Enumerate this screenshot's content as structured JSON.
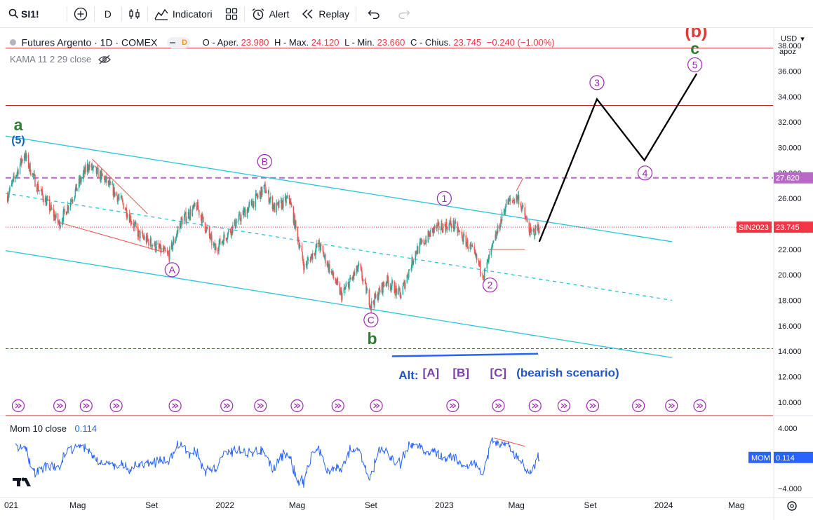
{
  "toolbar": {
    "symbol": "SI1!",
    "interval": "D",
    "indicators_label": "Indicatori",
    "alert_label": "Alert",
    "replay_label": "Replay"
  },
  "legend": {
    "title": "Futures Argento · 1D · COMEX",
    "badge_d": "D",
    "open_label": "O - Aper.",
    "open": "23.980",
    "high_label": "H - Max.",
    "high": "24.120",
    "low_label": "L - Min.",
    "low": "23.660",
    "close_label": "C - Chius.",
    "close": "23.745",
    "change": "−0.240 (−1.00%)",
    "study": "KAMA 11 2 29 close"
  },
  "scale": {
    "currency": "USD",
    "currency_arrow": "▾",
    "unit": "apoz"
  },
  "mom": {
    "title": "Mom 10 close",
    "value": "0.114",
    "tag": "MOM"
  },
  "colors": {
    "up": "#26a69a",
    "down": "#ef5350",
    "channel": "#26c6da",
    "red_line": "#c62828",
    "purple": "#9c27b0",
    "wave_black": "#000000",
    "green": "#2e7d32",
    "blue": "#1565c0",
    "alt_blue": "#2962ff",
    "mom_line": "#2962ff",
    "price_tag": "#f23645"
  },
  "chart_data": {
    "type": "candlestick",
    "symbol": "SI1!",
    "timeframe": "1D",
    "x_range": [
      "2021-01-01",
      "2024-07-01"
    ],
    "y_range": [
      9.0,
      39.0
    ],
    "y_ticks": [
      10,
      12,
      14,
      16,
      18,
      20,
      22,
      24,
      26,
      28,
      30,
      32,
      34,
      36,
      38
    ],
    "y_tick_labels": [
      "10.000",
      "12.000",
      "14.000",
      "16.000",
      "18.000",
      "20.000",
      "22.000",
      "24.000",
      "26.000",
      "28.000",
      "30.000",
      "32.000",
      "34.000",
      "36.000",
      "38.000"
    ],
    "x_ticks": [
      {
        "date": "2021-01-01",
        "label": "021"
      },
      {
        "date": "2021-05-01",
        "label": "Mag"
      },
      {
        "date": "2021-09-01",
        "label": "Set"
      },
      {
        "date": "2022-01-01",
        "label": "2022"
      },
      {
        "date": "2022-05-01",
        "label": "Mag"
      },
      {
        "date": "2022-09-01",
        "label": "Set"
      },
      {
        "date": "2023-01-01",
        "label": "2023"
      },
      {
        "date": "2023-05-01",
        "label": "Mag"
      },
      {
        "date": "2023-09-01",
        "label": "Set"
      },
      {
        "date": "2024-01-01",
        "label": "2024"
      },
      {
        "date": "2024-05-01",
        "label": "Mag"
      }
    ],
    "price_path": [
      [
        "2021-01-04",
        26.2
      ],
      [
        "2021-02-01",
        29.5
      ],
      [
        "2021-02-22",
        27.0
      ],
      [
        "2021-03-31",
        24.0
      ],
      [
        "2021-05-18",
        28.6
      ],
      [
        "2021-06-15",
        27.5
      ],
      [
        "2021-07-15",
        25.6
      ],
      [
        "2021-08-10",
        23.2
      ],
      [
        "2021-09-29",
        21.5
      ],
      [
        "2021-10-20",
        24.2
      ],
      [
        "2021-11-15",
        25.4
      ],
      [
        "2021-12-15",
        22.0
      ],
      [
        "2022-01-25",
        24.4
      ],
      [
        "2022-03-08",
        26.8
      ],
      [
        "2022-03-25",
        25.2
      ],
      [
        "2022-04-18",
        26.0
      ],
      [
        "2022-05-13",
        20.6
      ],
      [
        "2022-06-06",
        22.4
      ],
      [
        "2022-07-14",
        18.4
      ],
      [
        "2022-08-12",
        20.6
      ],
      [
        "2022-09-01",
        17.6
      ],
      [
        "2022-09-27",
        19.6
      ],
      [
        "2022-10-20",
        18.4
      ],
      [
        "2022-11-14",
        21.8
      ],
      [
        "2022-12-15",
        23.6
      ],
      [
        "2023-01-15",
        24.0
      ],
      [
        "2023-02-15",
        22.0
      ],
      [
        "2023-03-08",
        20.0
      ],
      [
        "2023-04-14",
        25.6
      ],
      [
        "2023-05-04",
        26.1
      ],
      [
        "2023-05-25",
        23.2
      ],
      [
        "2023-06-08",
        23.745
      ]
    ],
    "last_close": 23.745,
    "price_tag_label": "SIN2023",
    "price_tag_value": "23.745",
    "level_tag_value": "27.620",
    "horizontal_levels": [
      {
        "price": 37.8,
        "style": "solid",
        "color": "red"
      },
      {
        "price": 33.3,
        "style": "solid",
        "color": "red"
      },
      {
        "price": 27.62,
        "style": "dashed",
        "color": "purple"
      },
      {
        "price": 14.2,
        "style": "dashed",
        "color": "red"
      }
    ],
    "channel_lines": [
      {
        "style": "solid",
        "from": [
          "2021-01-01",
          30.9
        ],
        "to": [
          "2024-01-15",
          22.6
        ]
      },
      {
        "style": "dashed",
        "from": [
          "2021-01-01",
          26.4
        ],
        "to": [
          "2024-01-15",
          18.0
        ]
      },
      {
        "style": "solid",
        "from": [
          "2021-01-01",
          21.9
        ],
        "to": [
          "2024-01-15",
          13.5
        ]
      }
    ],
    "projection_path": [
      [
        "2023-06-08",
        22.6
      ],
      [
        "2023-09-12",
        33.8
      ],
      [
        "2023-11-30",
        29.0
      ],
      [
        "2024-02-25",
        35.8
      ]
    ],
    "wave_labels": [
      {
        "text": "a",
        "color": "green",
        "date": "2021-01-22",
        "price": 31.8
      },
      {
        "text": "(5)",
        "color": "blue",
        "date": "2021-01-22",
        "price": 30.6
      },
      {
        "text": "B",
        "style": "circle",
        "date": "2022-03-08",
        "price": 28.9
      },
      {
        "text": "A",
        "style": "circle",
        "date": "2021-10-05",
        "price": 20.4
      },
      {
        "text": "C",
        "style": "circle",
        "date": "2022-09-01",
        "price": 16.45
      },
      {
        "text": "b",
        "color": "green",
        "date": "2022-09-03",
        "price": 15.0
      },
      {
        "text": "1",
        "style": "circle",
        "date": "2023-01-01",
        "price": 26.0
      },
      {
        "text": "2",
        "style": "circle",
        "date": "2023-03-18",
        "price": 19.2
      },
      {
        "text": "3",
        "style": "circle",
        "date": "2023-09-12",
        "price": 35.1
      },
      {
        "text": "4",
        "style": "circle",
        "date": "2023-12-01",
        "price": 28.0
      },
      {
        "text": "5",
        "style": "circle",
        "date": "2024-02-22",
        "price": 36.5
      },
      {
        "text": "c",
        "color": "green",
        "date": "2024-02-22",
        "price": 37.8
      },
      {
        "text": "(b)",
        "color": "red",
        "date": "2024-02-24",
        "price": 39.15
      }
    ],
    "alt_annotation": {
      "alt": "Alt:",
      "a": "[A]",
      "b": "[B]",
      "c": "[C]",
      "note": "(bearish scenario)"
    },
    "event_markers": [
      "2021-01-22",
      "2021-04-01",
      "2021-05-15",
      "2021-07-04",
      "2021-10-10",
      "2022-01-04",
      "2022-03-01",
      "2022-05-01",
      "2022-07-08",
      "2022-09-10",
      "2023-01-15",
      "2023-04-01",
      "2023-06-01",
      "2023-07-19",
      "2023-09-05",
      "2023-11-20",
      "2024-01-14",
      "2024-03-01"
    ],
    "momentum": {
      "name": "Mom 10 close",
      "y_range": [
        -5,
        5
      ],
      "y_ticks": [
        4,
        -4
      ],
      "y_tick_labels": [
        "4.000",
        "−4.000"
      ],
      "last": 0.114
    }
  }
}
